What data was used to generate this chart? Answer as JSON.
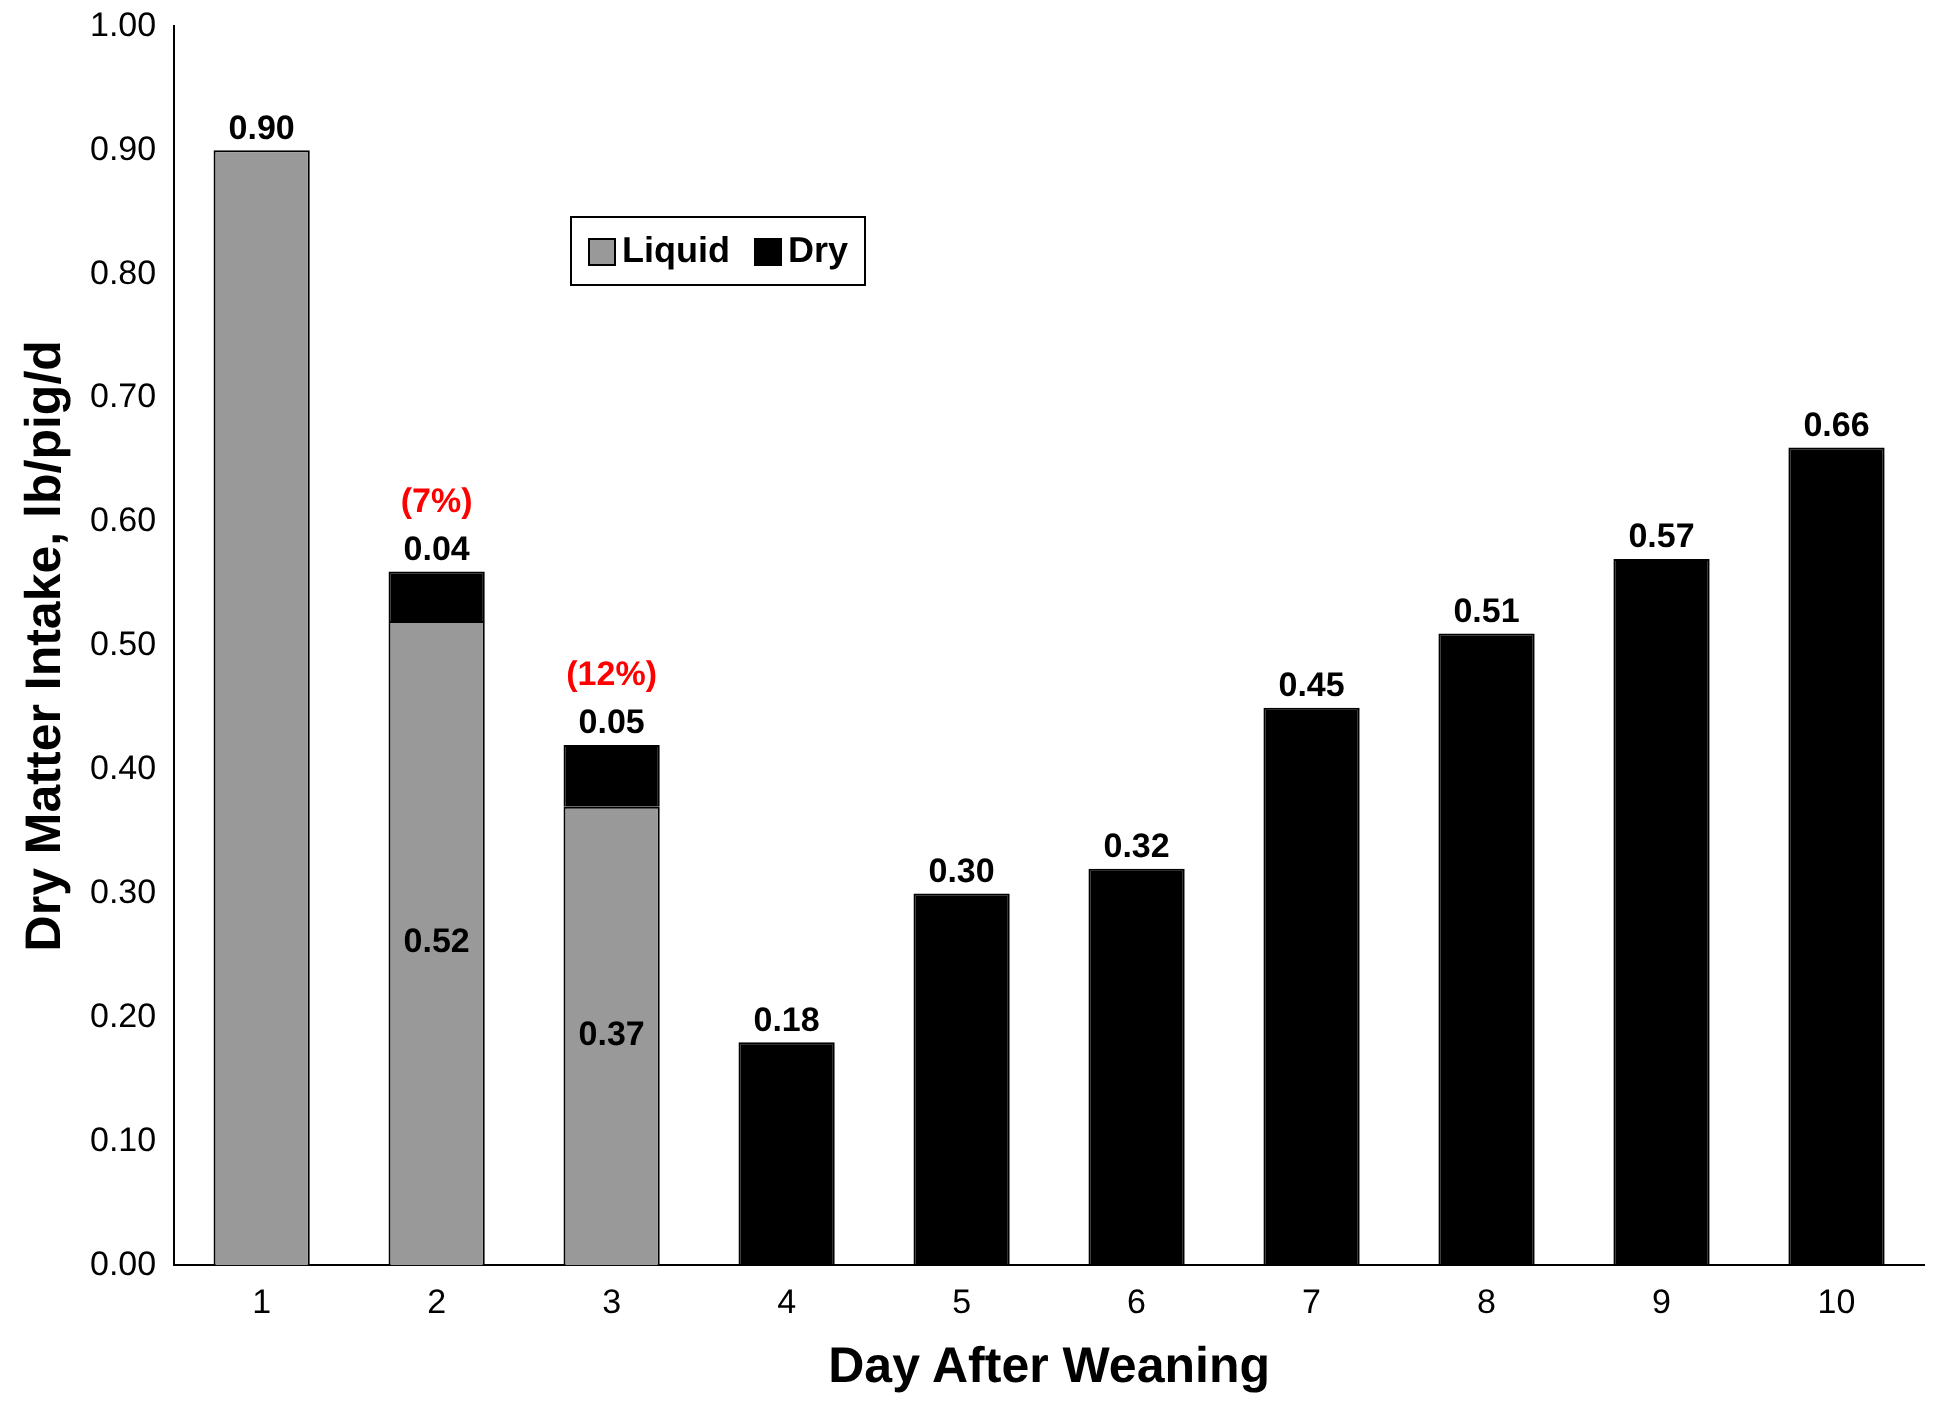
{
  "chart_data": {
    "type": "bar",
    "stacked": true,
    "xlabel": "Day After Weaning",
    "ylabel": "Dry Matter Intake, lb/pig/d",
    "categories": [
      "1",
      "2",
      "3",
      "4",
      "5",
      "6",
      "7",
      "8",
      "9",
      "10"
    ],
    "series": [
      {
        "name": "Liquid",
        "color": "#999999",
        "values": [
          0.9,
          0.52,
          0.37,
          null,
          null,
          null,
          null,
          null,
          null,
          null
        ],
        "value_labels": [
          "0.90",
          "0.52",
          "0.37",
          null,
          null,
          null,
          null,
          null,
          null,
          null
        ]
      },
      {
        "name": "Dry",
        "color": "#000000",
        "values": [
          null,
          0.04,
          0.05,
          0.18,
          0.3,
          0.32,
          0.45,
          0.51,
          0.57,
          0.66
        ],
        "value_labels": [
          null,
          "0.04",
          "0.05",
          "0.18",
          "0.30",
          "0.32",
          "0.45",
          "0.51",
          "0.57",
          "0.66"
        ]
      }
    ],
    "ylim": [
      0,
      1
    ],
    "yticks": [
      {
        "value": 0,
        "label": "0.00"
      },
      {
        "value": 0.1,
        "label": "0.10"
      },
      {
        "value": 0.2,
        "label": "0.20"
      },
      {
        "value": 0.3,
        "label": "0.30"
      },
      {
        "value": 0.4,
        "label": "0.40"
      },
      {
        "value": 0.5,
        "label": "0.50"
      },
      {
        "value": 0.6,
        "label": "0.60"
      },
      {
        "value": 0.7,
        "label": "0.70"
      },
      {
        "value": 0.8,
        "label": "0.80"
      },
      {
        "value": 0.9,
        "label": "0.90"
      },
      {
        "value": 1,
        "label": "1.00"
      }
    ],
    "annotations": [
      {
        "text": "(7%)",
        "x": "2",
        "y": 0.56
      },
      {
        "text": "(12%)",
        "x": "3",
        "y": 0.42
      }
    ],
    "grid": false,
    "legend": "top left"
  }
}
